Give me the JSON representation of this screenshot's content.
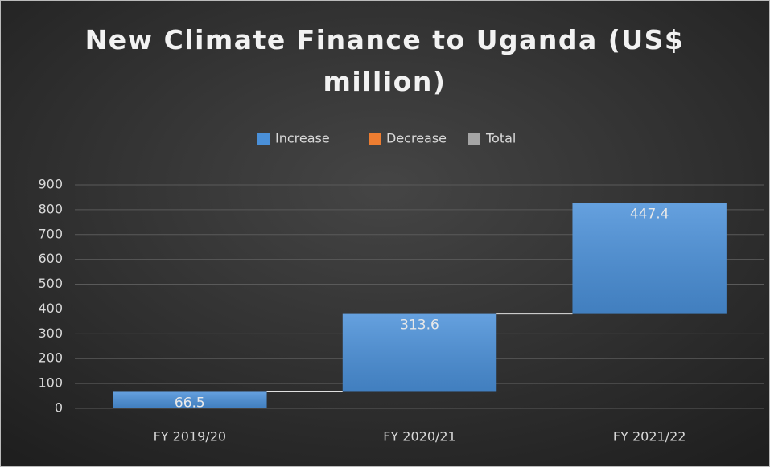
{
  "chart_data": {
    "type": "waterfall",
    "title": "New Climate Finance to Uganda (US$ million)",
    "categories": [
      "FY 2019/20",
      "FY 2020/21",
      "FY 2021/22"
    ],
    "values": [
      66.5,
      313.6,
      447.4
    ],
    "legend": [
      {
        "name": "Increase",
        "color": "#4a90d9"
      },
      {
        "name": "Decrease",
        "color": "#ed7d31"
      },
      {
        "name": "Total",
        "color": "#a5a5a5"
      }
    ],
    "ylim": [
      0,
      900
    ],
    "yticks": [
      0,
      100,
      200,
      300,
      400,
      500,
      600,
      700,
      800,
      900
    ],
    "grid": true
  }
}
